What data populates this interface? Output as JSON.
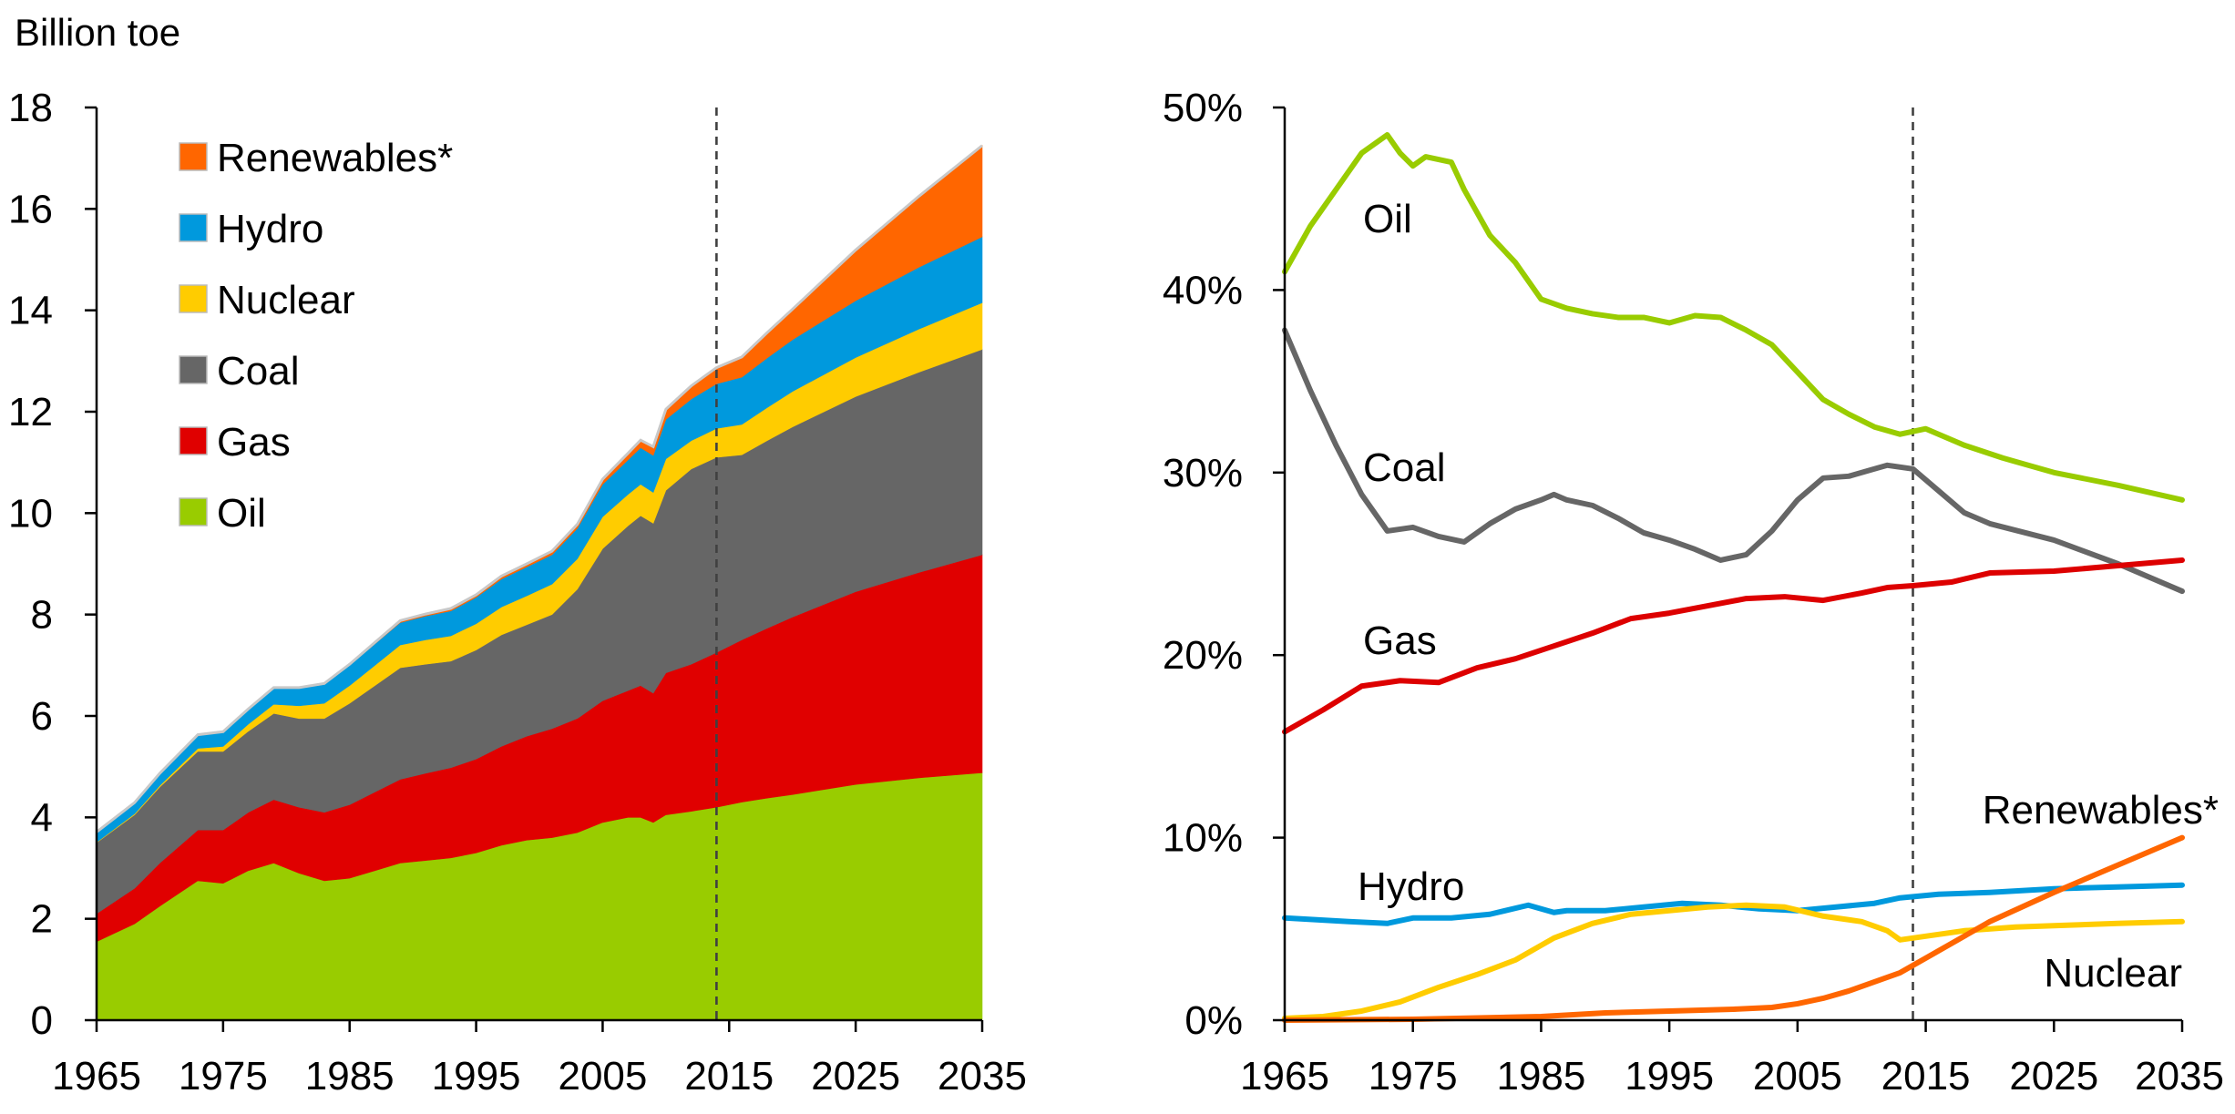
{
  "chart_data": [
    {
      "type": "area",
      "stacked": true,
      "ylabel": "Billion toe",
      "ylim": [
        0,
        18
      ],
      "xlim": [
        1965,
        2035
      ],
      "x_ticks": [
        "1965",
        "1975",
        "1985",
        "1995",
        "2005",
        "2015",
        "2025",
        "2035"
      ],
      "y_ticks": [
        "0",
        "2",
        "4",
        "6",
        "8",
        "10",
        "12",
        "14",
        "16",
        "18"
      ],
      "projection_from": 2014,
      "legend_position": "top-left",
      "legend_order": [
        "Renewables*",
        "Hydro",
        "Nuclear",
        "Coal",
        "Gas",
        "Oil"
      ],
      "x": [
        1965,
        1968,
        1970,
        1973,
        1975,
        1977,
        1979,
        1981,
        1983,
        1985,
        1987,
        1989,
        1991,
        1993,
        1995,
        1997,
        1999,
        2001,
        2003,
        2005,
        2007,
        2008,
        2009,
        2010,
        2012,
        2014,
        2016,
        2018,
        2020,
        2025,
        2030,
        2035
      ],
      "series": [
        {
          "name": "Oil",
          "color": "#99cc00",
          "values": [
            1.55,
            1.9,
            2.25,
            2.75,
            2.7,
            2.95,
            3.1,
            2.9,
            2.75,
            2.8,
            2.95,
            3.1,
            3.15,
            3.2,
            3.3,
            3.45,
            3.55,
            3.6,
            3.7,
            3.9,
            4.0,
            4.0,
            3.9,
            4.05,
            4.12,
            4.2,
            4.3,
            4.38,
            4.45,
            4.65,
            4.78,
            4.88
          ]
        },
        {
          "name": "Gas",
          "color": "#e00000",
          "values": [
            0.55,
            0.7,
            0.85,
            1.0,
            1.05,
            1.15,
            1.25,
            1.3,
            1.35,
            1.45,
            1.55,
            1.65,
            1.72,
            1.78,
            1.85,
            1.95,
            2.05,
            2.15,
            2.25,
            2.4,
            2.5,
            2.6,
            2.55,
            2.8,
            2.9,
            3.05,
            3.2,
            3.35,
            3.5,
            3.8,
            4.05,
            4.3
          ]
        },
        {
          "name": "Coal",
          "color": "#666666",
          "values": [
            1.4,
            1.45,
            1.5,
            1.55,
            1.55,
            1.6,
            1.7,
            1.75,
            1.85,
            2.0,
            2.1,
            2.2,
            2.15,
            2.1,
            2.15,
            2.2,
            2.2,
            2.25,
            2.55,
            3.0,
            3.25,
            3.35,
            3.35,
            3.6,
            3.85,
            3.85,
            3.65,
            3.7,
            3.75,
            3.85,
            3.95,
            4.05
          ]
        },
        {
          "name": "Nuclear",
          "color": "#ffcc00",
          "values": [
            0.01,
            0.02,
            0.03,
            0.06,
            0.1,
            0.14,
            0.18,
            0.25,
            0.3,
            0.35,
            0.4,
            0.45,
            0.48,
            0.5,
            0.52,
            0.55,
            0.57,
            0.6,
            0.6,
            0.63,
            0.62,
            0.62,
            0.61,
            0.62,
            0.56,
            0.57,
            0.6,
            0.65,
            0.7,
            0.77,
            0.85,
            0.92
          ]
        },
        {
          "name": "Hydro",
          "color": "#0099dd",
          "values": [
            0.2,
            0.22,
            0.24,
            0.27,
            0.29,
            0.3,
            0.32,
            0.35,
            0.37,
            0.4,
            0.42,
            0.44,
            0.47,
            0.49,
            0.52,
            0.55,
            0.57,
            0.58,
            0.6,
            0.64,
            0.68,
            0.72,
            0.73,
            0.78,
            0.82,
            0.88,
            0.93,
            0.98,
            1.02,
            1.12,
            1.22,
            1.3
          ]
        },
        {
          "name": "Renewables*",
          "color": "#ff6600",
          "values": [
            0.0,
            0.0,
            0.0,
            0.0,
            0.0,
            0.0,
            0.01,
            0.01,
            0.02,
            0.02,
            0.03,
            0.04,
            0.04,
            0.05,
            0.05,
            0.06,
            0.06,
            0.07,
            0.08,
            0.1,
            0.13,
            0.15,
            0.17,
            0.2,
            0.26,
            0.32,
            0.4,
            0.5,
            0.6,
            1.0,
            1.4,
            1.8
          ]
        }
      ]
    },
    {
      "type": "line",
      "ylim": [
        0,
        50
      ],
      "xlim": [
        1965,
        2035
      ],
      "x_ticks": [
        "1965",
        "1975",
        "1985",
        "1995",
        "2005",
        "2015",
        "2025",
        "2035"
      ],
      "y_ticks": [
        "0%",
        "10%",
        "20%",
        "30%",
        "40%",
        "50%"
      ],
      "projection_from": 2014,
      "series": [
        {
          "name": "Oil",
          "color": "#99cc00",
          "x": [
            1965,
            1967,
            1969,
            1971,
            1973,
            1974,
            1975,
            1976,
            1978,
            1979,
            1981,
            1983,
            1985,
            1987,
            1989,
            1991,
            1993,
            1995,
            1997,
            1999,
            2001,
            2003,
            2005,
            2007,
            2009,
            2011,
            2013,
            2015,
            2018,
            2021,
            2025,
            2030,
            2035
          ],
          "values": [
            41.0,
            43.5,
            45.5,
            47.5,
            48.5,
            47.5,
            46.8,
            47.3,
            47.0,
            45.5,
            43.0,
            41.5,
            39.5,
            39.0,
            38.7,
            38.5,
            38.5,
            38.2,
            38.6,
            38.5,
            37.8,
            37.0,
            35.5,
            34.0,
            33.2,
            32.5,
            32.1,
            32.4,
            31.5,
            30.8,
            30.0,
            29.3,
            28.5
          ]
        },
        {
          "name": "Coal",
          "color": "#666666",
          "x": [
            1965,
            1967,
            1969,
            1971,
            1973,
            1975,
            1977,
            1979,
            1981,
            1983,
            1985,
            1986,
            1987,
            1989,
            1991,
            1993,
            1995,
            1997,
            1999,
            2001,
            2003,
            2005,
            2007,
            2009,
            2011,
            2012,
            2014,
            2016,
            2018,
            2020,
            2025,
            2030,
            2035
          ],
          "values": [
            37.8,
            34.5,
            31.5,
            28.8,
            26.8,
            27.0,
            26.5,
            26.2,
            27.2,
            28.0,
            28.5,
            28.8,
            28.5,
            28.2,
            27.5,
            26.7,
            26.3,
            25.8,
            25.2,
            25.5,
            26.8,
            28.5,
            29.7,
            29.8,
            30.2,
            30.4,
            30.2,
            29.0,
            27.8,
            27.2,
            26.3,
            25.0,
            23.5
          ]
        },
        {
          "name": "Gas",
          "color": "#dd0000",
          "x": [
            1965,
            1968,
            1971,
            1974,
            1977,
            1980,
            1983,
            1986,
            1989,
            1992,
            1995,
            1998,
            2001,
            2004,
            2007,
            2010,
            2012,
            2014,
            2017,
            2020,
            2025,
            2030,
            2035
          ],
          "values": [
            15.8,
            17.0,
            18.3,
            18.6,
            18.5,
            19.3,
            19.8,
            20.5,
            21.2,
            22.0,
            22.3,
            22.7,
            23.1,
            23.2,
            23.0,
            23.4,
            23.7,
            23.8,
            24.0,
            24.5,
            24.6,
            24.9,
            25.2
          ]
        },
        {
          "name": "Hydro",
          "color": "#0099dd",
          "x": [
            1965,
            1970,
            1973,
            1975,
            1978,
            1981,
            1984,
            1986,
            1987,
            1990,
            1993,
            1996,
            1999,
            2002,
            2005,
            2008,
            2011,
            2013,
            2016,
            2020,
            2025,
            2030,
            2035
          ],
          "values": [
            5.6,
            5.4,
            5.3,
            5.6,
            5.6,
            5.8,
            6.3,
            5.9,
            6.0,
            6.0,
            6.2,
            6.4,
            6.3,
            6.1,
            6.0,
            6.2,
            6.4,
            6.7,
            6.9,
            7.0,
            7.2,
            7.3,
            7.4
          ]
        },
        {
          "name": "Nuclear",
          "color": "#ffcc00",
          "x": [
            1965,
            1968,
            1971,
            1974,
            1977,
            1980,
            1983,
            1986,
            1989,
            1992,
            1995,
            1998,
            2001,
            2004,
            2007,
            2010,
            2012,
            2013,
            2015,
            2018,
            2022,
            2026,
            2030,
            2035
          ],
          "values": [
            0.1,
            0.2,
            0.5,
            1.0,
            1.8,
            2.5,
            3.3,
            4.5,
            5.3,
            5.8,
            6.0,
            6.2,
            6.3,
            6.2,
            5.7,
            5.4,
            4.9,
            4.4,
            4.6,
            4.9,
            5.1,
            5.2,
            5.3,
            5.4
          ]
        },
        {
          "name": "Renewables*",
          "color": "#ff6600",
          "x": [
            1965,
            1975,
            1985,
            1990,
            1995,
            2000,
            2003,
            2005,
            2007,
            2009,
            2011,
            2013,
            2015,
            2020,
            2025,
            2030,
            2035
          ],
          "values": [
            0.0,
            0.05,
            0.2,
            0.4,
            0.5,
            0.6,
            0.7,
            0.9,
            1.2,
            1.6,
            2.1,
            2.6,
            3.4,
            5.4,
            7.0,
            8.5,
            10.0
          ]
        }
      ],
      "labels": [
        {
          "series": "Oil",
          "text": "Oil"
        },
        {
          "series": "Coal",
          "text": "Coal"
        },
        {
          "series": "Gas",
          "text": "Gas"
        },
        {
          "series": "Hydro",
          "text": "Hydro"
        },
        {
          "series": "Renewables*",
          "text": "Renewables*"
        },
        {
          "series": "Nuclear",
          "text": "Nuclear"
        }
      ]
    }
  ]
}
